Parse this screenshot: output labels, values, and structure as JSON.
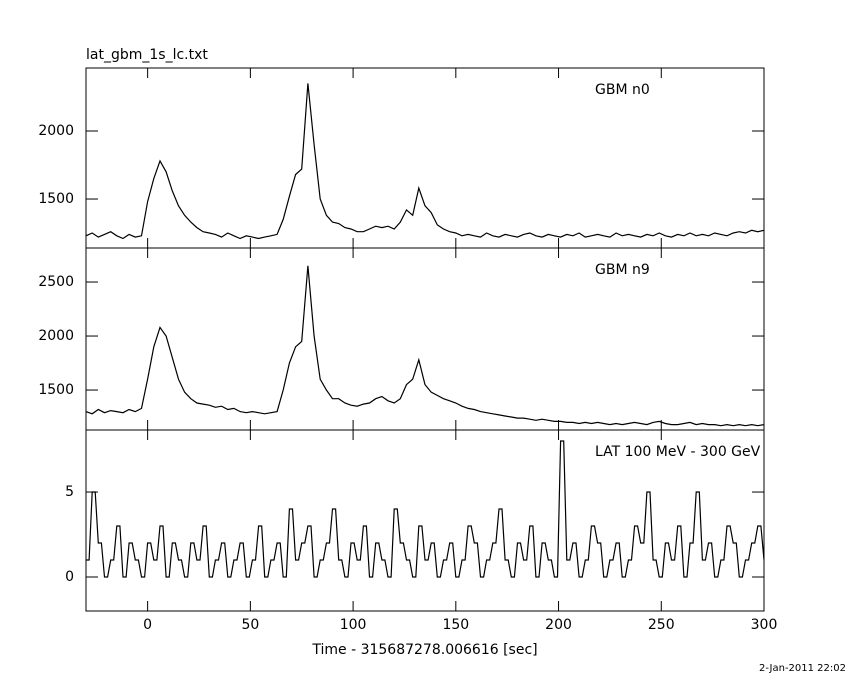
{
  "chart_data": [
    {
      "type": "line",
      "title": "lat_gbm_1s_lc.txt",
      "annotation": "GBM n0",
      "x": [
        -30,
        -27,
        -24,
        -21,
        -18,
        -15,
        -12,
        -9,
        -6,
        -3,
        0,
        3,
        6,
        9,
        12,
        15,
        18,
        21,
        24,
        27,
        30,
        33,
        36,
        39,
        42,
        45,
        48,
        51,
        54,
        57,
        60,
        63,
        66,
        69,
        72,
        75,
        78,
        81,
        84,
        87,
        90,
        93,
        96,
        99,
        102,
        105,
        108,
        111,
        114,
        117,
        120,
        123,
        126,
        129,
        132,
        135,
        138,
        141,
        144,
        147,
        150,
        153,
        156,
        159,
        162,
        165,
        168,
        171,
        174,
        177,
        180,
        183,
        186,
        189,
        192,
        195,
        198,
        201,
        204,
        207,
        210,
        213,
        216,
        219,
        222,
        225,
        228,
        231,
        234,
        237,
        240,
        243,
        246,
        249,
        252,
        255,
        258,
        261,
        264,
        267,
        270,
        273,
        276,
        279,
        282,
        285,
        288,
        291,
        294,
        297,
        300
      ],
      "values": [
        1230,
        1250,
        1220,
        1240,
        1260,
        1230,
        1210,
        1240,
        1220,
        1230,
        1480,
        1650,
        1780,
        1700,
        1560,
        1450,
        1380,
        1330,
        1290,
        1260,
        1250,
        1240,
        1220,
        1250,
        1230,
        1210,
        1230,
        1220,
        1210,
        1220,
        1230,
        1240,
        1350,
        1520,
        1680,
        1720,
        2350,
        1900,
        1500,
        1380,
        1330,
        1320,
        1290,
        1280,
        1260,
        1260,
        1280,
        1300,
        1290,
        1300,
        1280,
        1330,
        1420,
        1380,
        1580,
        1450,
        1400,
        1310,
        1280,
        1260,
        1250,
        1230,
        1240,
        1230,
        1220,
        1250,
        1230,
        1220,
        1240,
        1230,
        1220,
        1240,
        1250,
        1230,
        1220,
        1240,
        1230,
        1220,
        1240,
        1230,
        1250,
        1220,
        1230,
        1240,
        1230,
        1220,
        1250,
        1230,
        1240,
        1230,
        1220,
        1240,
        1230,
        1250,
        1230,
        1220,
        1240,
        1230,
        1250,
        1230,
        1240,
        1230,
        1250,
        1240,
        1230,
        1250,
        1260,
        1250,
        1270,
        1260,
        1270
      ],
      "xlim": [
        -30,
        300
      ],
      "ylim": [
        1140,
        2463
      ],
      "yticks": [
        1500,
        2000
      ]
    },
    {
      "type": "line",
      "annotation": "GBM n9",
      "x": [
        -30,
        -27,
        -24,
        -21,
        -18,
        -15,
        -12,
        -9,
        -6,
        -3,
        0,
        3,
        6,
        9,
        12,
        15,
        18,
        21,
        24,
        27,
        30,
        33,
        36,
        39,
        42,
        45,
        48,
        51,
        54,
        57,
        60,
        63,
        66,
        69,
        72,
        75,
        78,
        81,
        84,
        87,
        90,
        93,
        96,
        99,
        102,
        105,
        108,
        111,
        114,
        117,
        120,
        123,
        126,
        129,
        132,
        135,
        138,
        141,
        144,
        147,
        150,
        153,
        156,
        159,
        162,
        165,
        168,
        171,
        174,
        177,
        180,
        183,
        186,
        189,
        192,
        195,
        198,
        201,
        204,
        207,
        210,
        213,
        216,
        219,
        222,
        225,
        228,
        231,
        234,
        237,
        240,
        243,
        246,
        249,
        252,
        255,
        258,
        261,
        264,
        267,
        270,
        273,
        276,
        279,
        282,
        285,
        288,
        291,
        294,
        297,
        300
      ],
      "values": [
        1300,
        1280,
        1320,
        1290,
        1310,
        1300,
        1290,
        1320,
        1300,
        1330,
        1600,
        1900,
        2080,
        2000,
        1800,
        1600,
        1480,
        1420,
        1380,
        1370,
        1360,
        1340,
        1350,
        1320,
        1330,
        1300,
        1290,
        1300,
        1290,
        1280,
        1290,
        1300,
        1500,
        1750,
        1900,
        1950,
        2650,
        2000,
        1600,
        1500,
        1420,
        1420,
        1380,
        1360,
        1350,
        1370,
        1380,
        1420,
        1440,
        1400,
        1380,
        1420,
        1550,
        1600,
        1780,
        1550,
        1480,
        1450,
        1420,
        1400,
        1380,
        1350,
        1330,
        1320,
        1300,
        1290,
        1280,
        1270,
        1260,
        1250,
        1240,
        1240,
        1230,
        1220,
        1230,
        1220,
        1210,
        1210,
        1200,
        1200,
        1190,
        1200,
        1190,
        1200,
        1190,
        1180,
        1190,
        1180,
        1190,
        1200,
        1190,
        1180,
        1200,
        1210,
        1190,
        1180,
        1180,
        1190,
        1200,
        1180,
        1190,
        1180,
        1180,
        1170,
        1180,
        1170,
        1180,
        1170,
        1180,
        1170,
        1180
      ],
      "xlim": [
        -30,
        300
      ],
      "ylim": [
        1130,
        2815
      ],
      "yticks": [
        1500,
        2000,
        2500
      ]
    },
    {
      "type": "step",
      "annotation": "LAT 100 MeV - 300 GeV",
      "xlabel": "Time - 315687278.006616 [sec]",
      "x": [
        -30,
        -27,
        -24,
        -21,
        -18,
        -15,
        -12,
        -9,
        -6,
        -3,
        0,
        3,
        6,
        9,
        12,
        15,
        18,
        21,
        24,
        27,
        30,
        33,
        36,
        39,
        42,
        45,
        48,
        51,
        54,
        57,
        60,
        63,
        66,
        69,
        72,
        75,
        78,
        81,
        84,
        87,
        90,
        93,
        96,
        99,
        102,
        105,
        108,
        111,
        114,
        117,
        120,
        123,
        126,
        129,
        132,
        135,
        138,
        141,
        144,
        147,
        150,
        153,
        156,
        159,
        162,
        165,
        168,
        171,
        174,
        177,
        180,
        183,
        186,
        189,
        192,
        195,
        198,
        201,
        204,
        207,
        210,
        213,
        216,
        219,
        222,
        225,
        228,
        231,
        234,
        237,
        240,
        243,
        246,
        249,
        252,
        255,
        258,
        261,
        264,
        267,
        270,
        273,
        276,
        279,
        282,
        285,
        288,
        291,
        294,
        297,
        300
      ],
      "values": [
        1,
        5,
        2,
        0,
        1,
        3,
        0,
        2,
        1,
        0,
        2,
        1,
        3,
        0,
        2,
        1,
        0,
        2,
        1,
        3,
        0,
        1,
        2,
        0,
        1,
        2,
        0,
        1,
        3,
        0,
        1,
        2,
        0,
        4,
        1,
        2,
        3,
        0,
        1,
        2,
        4,
        1,
        0,
        2,
        1,
        3,
        0,
        2,
        1,
        0,
        4,
        2,
        1,
        0,
        3,
        1,
        2,
        0,
        1,
        2,
        0,
        1,
        3,
        2,
        0,
        1,
        2,
        4,
        1,
        0,
        2,
        1,
        3,
        0,
        2,
        1,
        0,
        8,
        1,
        2,
        0,
        1,
        3,
        2,
        0,
        1,
        2,
        0,
        1,
        3,
        2,
        5,
        1,
        0,
        2,
        1,
        3,
        0,
        2,
        5,
        1,
        2,
        0,
        1,
        3,
        2,
        0,
        1,
        2,
        3,
        1
      ],
      "xlim": [
        -30,
        300
      ],
      "ylim": [
        -2,
        8.65
      ],
      "yticks": [
        0,
        5
      ],
      "xticks": [
        0,
        50,
        100,
        150,
        200,
        250,
        300
      ]
    }
  ],
  "footer": "2-Jan-2011 22:02"
}
